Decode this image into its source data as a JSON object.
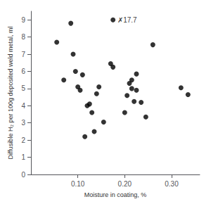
{
  "chart_data": {
    "type": "scatter",
    "x": [
      0.055,
      0.07,
      0.085,
      0.09,
      0.095,
      0.1,
      0.105,
      0.11,
      0.115,
      0.12,
      0.125,
      0.13,
      0.135,
      0.14,
      0.145,
      0.155,
      0.17,
      0.175,
      0.2,
      0.205,
      0.21,
      0.215,
      0.215,
      0.22,
      0.225,
      0.225,
      0.235,
      0.245,
      0.26,
      0.32,
      0.335
    ],
    "y": [
      7.7,
      5.5,
      8.8,
      7.0,
      6.0,
      5.1,
      4.9,
      5.8,
      2.2,
      4.0,
      4.1,
      3.6,
      2.5,
      4.7,
      5.1,
      3.05,
      6.45,
      6.25,
      3.6,
      4.6,
      5.3,
      5.5,
      5.0,
      4.25,
      4.9,
      5.85,
      4.2,
      3.35,
      7.55,
      5.05,
      4.65
    ],
    "color": "#000000",
    "annotations": [
      {
        "x": 0.175,
        "y": 9.0,
        "text": "✗17.7"
      }
    ],
    "xlabel": "Moisture in coating, %",
    "ylabel": "Diffusible H₂ per 100g deposited weld metal, ml",
    "xlim": [
      0.0,
      0.36
    ],
    "ylim": [
      0.0,
      9.5
    ],
    "xticks": [
      {
        "value": 0.1,
        "label": "0.10"
      },
      {
        "value": 0.2,
        "label": "0.20"
      },
      {
        "value": 0.3,
        "label": "0.30"
      }
    ],
    "yticks": [
      0,
      1,
      2,
      3,
      4,
      5,
      6,
      7,
      8,
      9
    ],
    "grid": false
  }
}
